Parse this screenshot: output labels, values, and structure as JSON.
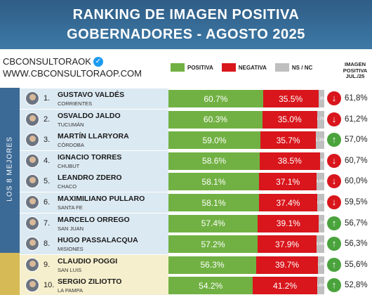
{
  "header": {
    "title_line1": "RANKING DE IMAGEN POSITIVA",
    "title_line2": "GOBERNADORES - AGOSTO 2025"
  },
  "brand": {
    "handle": "CBCONSULTORAOK",
    "website": "WWW.CBCONSULTORAOP.COM"
  },
  "legend": {
    "positive": "POSITIVA",
    "negative": "NEGATIVA",
    "nsnc": "NS / NC"
  },
  "column_header": {
    "line1": "IMAGEN",
    "line2": "POSITIVA",
    "line3": "JUL./25"
  },
  "side_label": "LOS 8 MEJORES",
  "colors": {
    "positive": "#71b143",
    "negative": "#d8161c",
    "nsnc": "#bfbfbf",
    "arrow_up": "#4aa33c",
    "arrow_down": "#d8161c"
  },
  "chart_data": {
    "type": "bar",
    "stacked": true,
    "orientation": "horizontal",
    "title": "RANKING DE IMAGEN POSITIVA GOBERNADORES - AGOSTO 2025",
    "rows": [
      {
        "rank": "1.",
        "name": "GUSTAVO VALDÉS",
        "province": "CORRIENTES",
        "positive": 60.7,
        "negative": 35.5,
        "nsnc": 3.8,
        "prev": "61,8%",
        "trend": "down"
      },
      {
        "rank": "2.",
        "name": "OSVALDO JALDO",
        "province": "TUCUMÁN",
        "positive": 60.3,
        "negative": 35.0,
        "nsnc": 4.7,
        "prev": "61,2%",
        "trend": "down"
      },
      {
        "rank": "3.",
        "name": "MARTÍN LLARYORA",
        "province": "CÓRDOBA",
        "positive": 59.0,
        "negative": 35.7,
        "nsnc": 5.3,
        "prev": "57,0%",
        "trend": "up"
      },
      {
        "rank": "4.",
        "name": "IGNACIO TORRES",
        "province": "CHUBUT",
        "positive": 58.6,
        "negative": 38.5,
        "nsnc": 2.9,
        "prev": "60,7%",
        "trend": "down"
      },
      {
        "rank": "5.",
        "name": "LEANDRO ZDERO",
        "province": "CHACO",
        "positive": 58.1,
        "negative": 37.1,
        "nsnc": 4.8,
        "prev": "60,0%",
        "trend": "down"
      },
      {
        "rank": "6.",
        "name": "MAXIMILIANO PULLARO",
        "province": "SANTA FE",
        "positive": 58.1,
        "negative": 37.4,
        "nsnc": 4.5,
        "prev": "59,5%",
        "trend": "down"
      },
      {
        "rank": "7.",
        "name": "MARCELO ORREGO",
        "province": "SAN JUAN",
        "positive": 57.4,
        "negative": 39.1,
        "nsnc": 3.5,
        "prev": "56,7%",
        "trend": "up"
      },
      {
        "rank": "8.",
        "name": "HUGO PASSALACQUA",
        "province": "MISIONES",
        "positive": 57.2,
        "negative": 37.9,
        "nsnc": 4.9,
        "prev": "56,3%",
        "trend": "up"
      },
      {
        "rank": "9.",
        "name": "CLAUDIO POGGI",
        "province": "SAN LUIS",
        "positive": 56.3,
        "negative": 39.7,
        "nsnc": 4.0,
        "prev": "55,6%",
        "trend": "up"
      },
      {
        "rank": "10.",
        "name": "SERGIO ZILIOTTO",
        "province": "LA PAMPA",
        "positive": 54.2,
        "negative": 41.2,
        "nsnc": 4.6,
        "prev": "52,8%",
        "trend": "up"
      }
    ]
  }
}
